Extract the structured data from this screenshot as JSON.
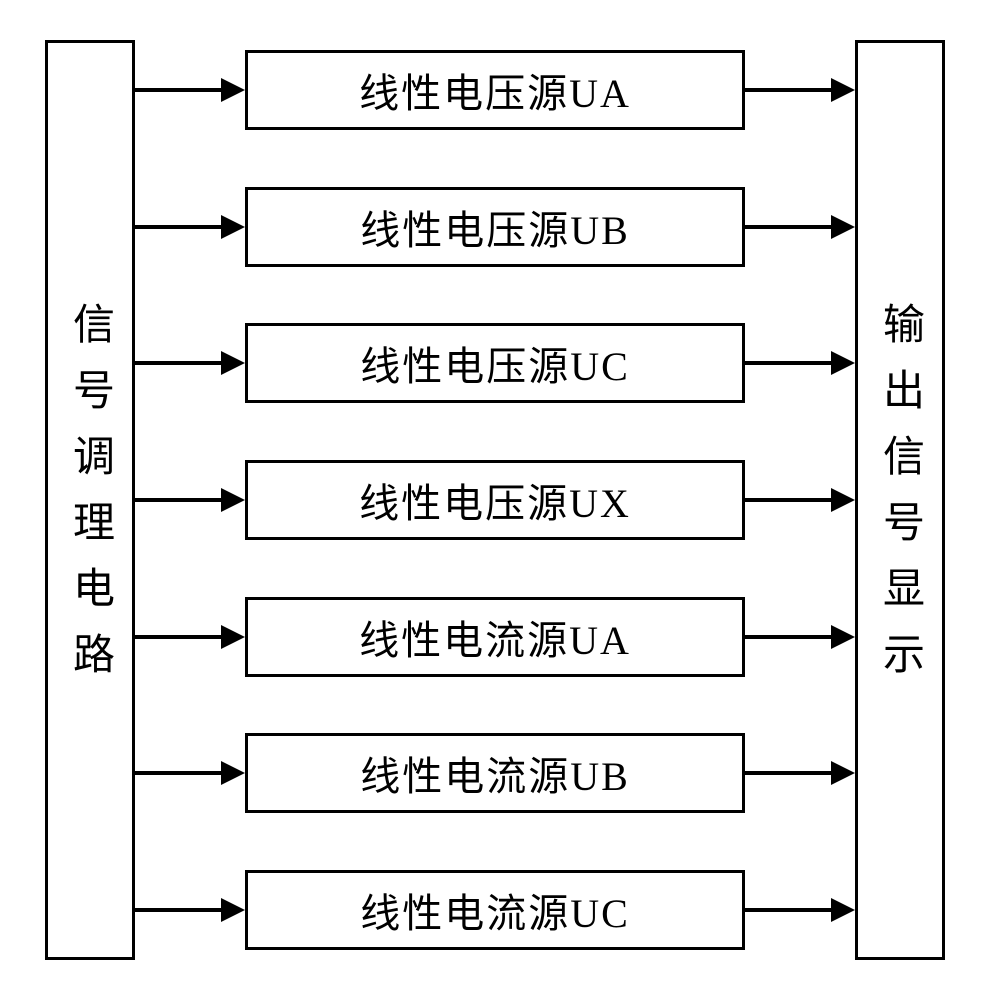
{
  "diagram": {
    "type": "flowchart",
    "background_color": "#ffffff",
    "border_color": "#000000",
    "text_color": "#000000",
    "border_width": 3,
    "fontsize_middle": 40,
    "fontsize_side": 42,
    "left_block": {
      "label": "信号调理电路"
    },
    "right_block": {
      "label": "输出信号显示"
    },
    "middle_blocks": [
      {
        "label": "线性电压源UA"
      },
      {
        "label": "线性电压源UB"
      },
      {
        "label": "线性电压源UC"
      },
      {
        "label": "线性电压源UX"
      },
      {
        "label": "线性电流源UA"
      },
      {
        "label": "线性电流源UB"
      },
      {
        "label": "线性电流源UC"
      }
    ],
    "arrow": {
      "color": "#000000",
      "line_width": 4,
      "head_length": 24,
      "head_width": 24
    }
  }
}
